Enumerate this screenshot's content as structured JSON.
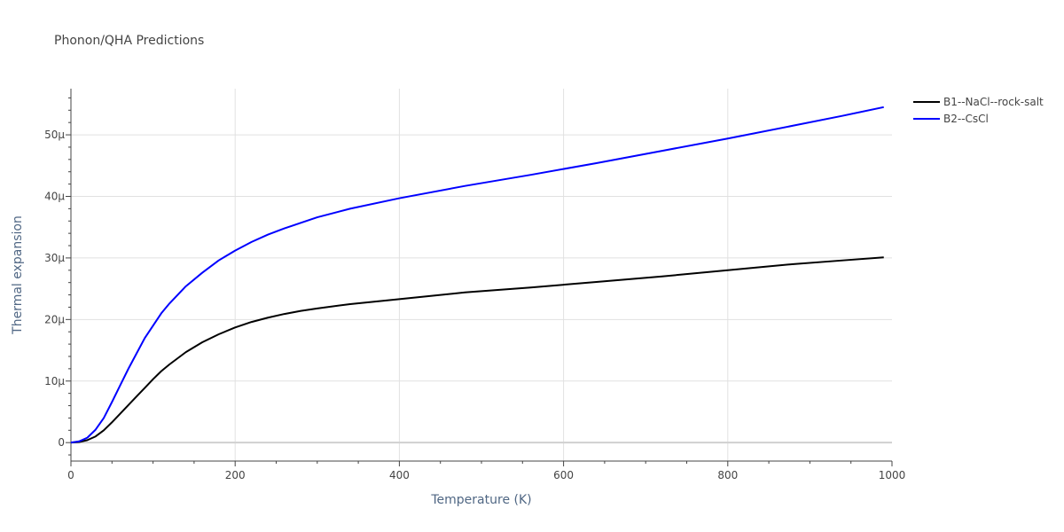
{
  "chart_data": {
    "type": "line",
    "title": "Phonon/QHA Predictions",
    "xlabel": "Temperature (K)",
    "ylabel": "Thermal expansion",
    "xlim": [
      0,
      1000
    ],
    "ylim": [
      -3e-06,
      5.75e-05
    ],
    "x_ticks": [
      0,
      200,
      400,
      600,
      800,
      1000
    ],
    "x_tick_labels": [
      "0",
      "200",
      "400",
      "600",
      "800",
      "1000"
    ],
    "y_ticks": [
      0,
      1e-05,
      2e-05,
      3e-05,
      4e-05,
      5e-05
    ],
    "y_tick_labels": [
      "0",
      "10µ",
      "20µ",
      "30µ",
      "40µ",
      "50µ"
    ],
    "grid": true,
    "legend_position": "top-right, outside plot",
    "series": [
      {
        "name": "B1--NaCl--rock-salt",
        "color": "#000000",
        "x": [
          0,
          10,
          20,
          30,
          40,
          50,
          60,
          70,
          80,
          90,
          100,
          110,
          120,
          140,
          160,
          180,
          200,
          220,
          240,
          260,
          280,
          300,
          340,
          400,
          480,
          560,
          640,
          720,
          800,
          880,
          940,
          990
        ],
        "y": [
          0,
          1e-07,
          4e-07,
          1e-06,
          2e-06,
          3.3e-06,
          4.7e-06,
          6.1e-06,
          7.5e-06,
          8.9e-06,
          1.03e-05,
          1.16e-05,
          1.27e-05,
          1.47e-05,
          1.63e-05,
          1.76e-05,
          1.87e-05,
          1.96e-05,
          2.03e-05,
          2.09e-05,
          2.14e-05,
          2.18e-05,
          2.25e-05,
          2.33e-05,
          2.44e-05,
          2.52e-05,
          2.61e-05,
          2.7e-05,
          2.8e-05,
          2.9e-05,
          2.96e-05,
          3.01e-05
        ]
      },
      {
        "name": "B2--CsCl",
        "color": "#0000ff",
        "x": [
          0,
          10,
          20,
          30,
          40,
          50,
          60,
          70,
          80,
          90,
          100,
          110,
          120,
          140,
          160,
          180,
          200,
          220,
          240,
          260,
          280,
          300,
          340,
          400,
          480,
          560,
          640,
          720,
          800,
          880,
          940,
          990
        ],
        "y": [
          0,
          2e-07,
          8e-07,
          2.1e-06,
          4e-06,
          6.6e-06,
          9.3e-06,
          1.2e-05,
          1.45e-05,
          1.7e-05,
          1.9e-05,
          2.1e-05,
          2.26e-05,
          2.54e-05,
          2.76e-05,
          2.96e-05,
          3.12e-05,
          3.26e-05,
          3.38e-05,
          3.48e-05,
          3.57e-05,
          3.66e-05,
          3.8e-05,
          3.97e-05,
          4.17e-05,
          4.35e-05,
          4.54e-05,
          4.74e-05,
          4.94e-05,
          5.15e-05,
          5.31e-05,
          5.45e-05
        ]
      }
    ]
  }
}
